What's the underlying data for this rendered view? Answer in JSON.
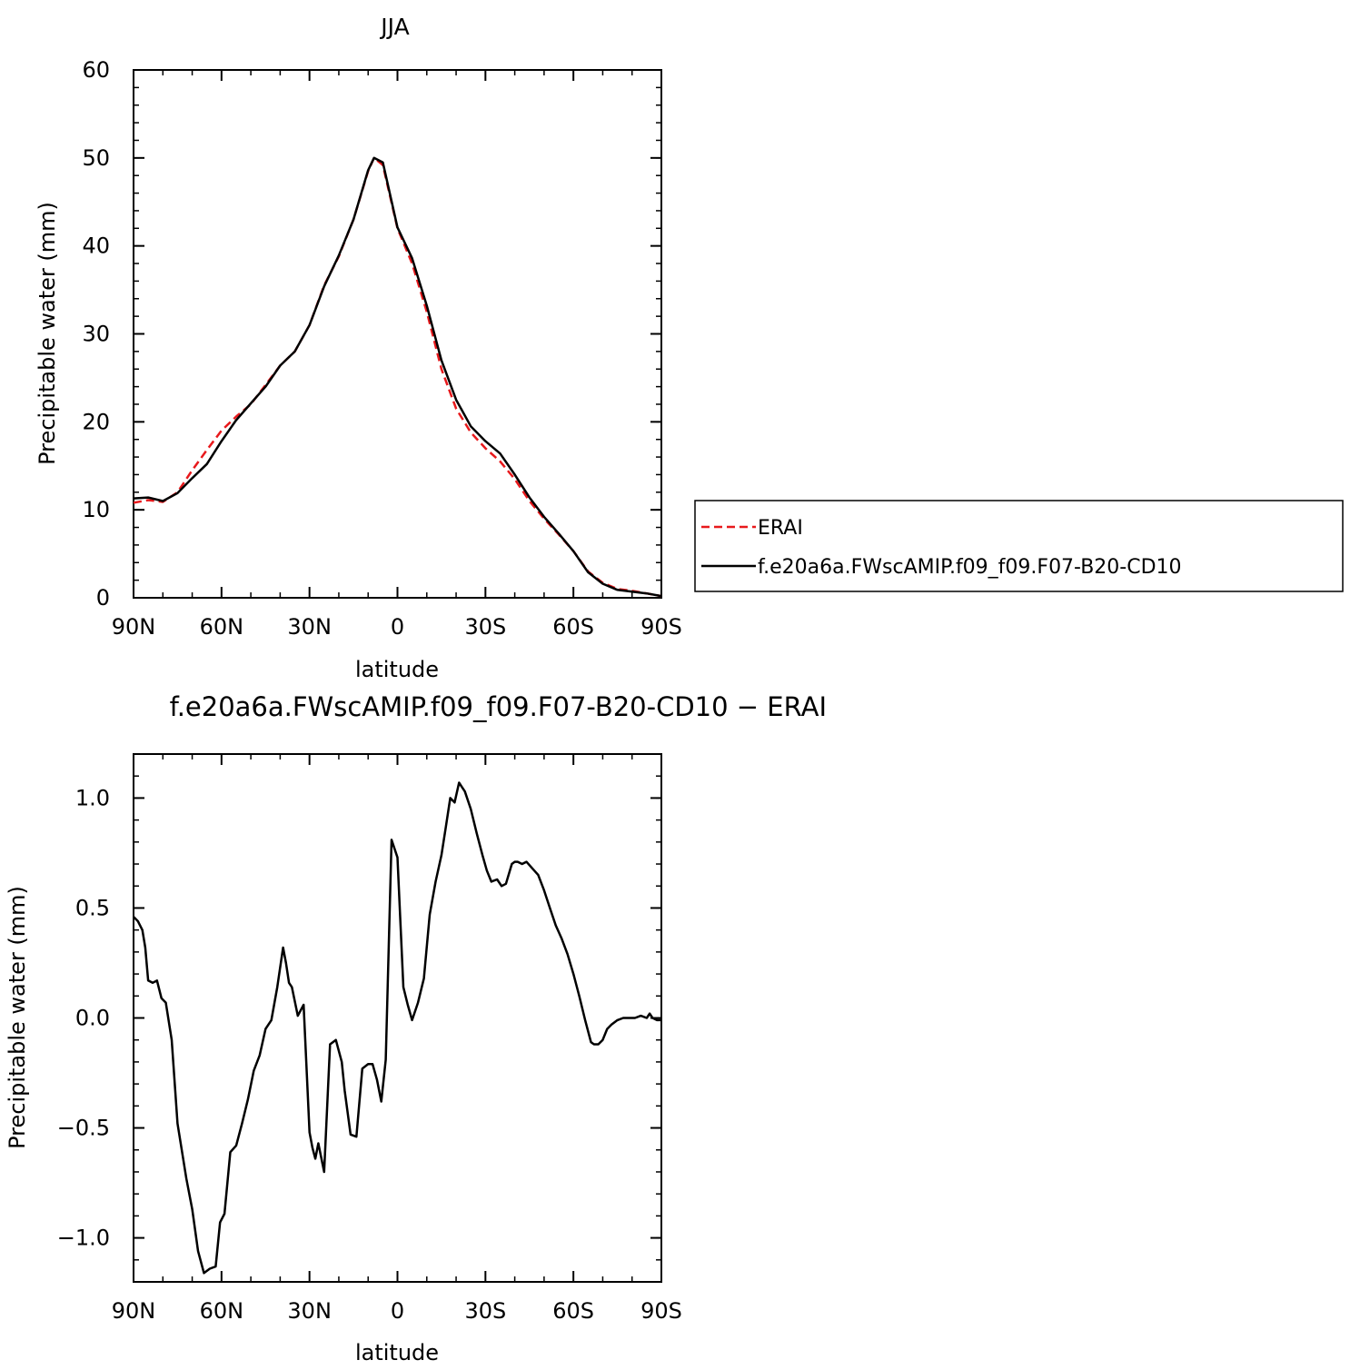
{
  "chart_data": [
    {
      "type": "line",
      "title": "JJA",
      "xlabel": "latitude",
      "ylabel": "Precipitable water (mm)",
      "xlim": [
        90,
        -90
      ],
      "ylim": [
        0,
        60
      ],
      "x_ticks": [
        {
          "v": 90,
          "label": "90N"
        },
        {
          "v": 60,
          "label": "60N"
        },
        {
          "v": 30,
          "label": "30N"
        },
        {
          "v": 0,
          "label": "0"
        },
        {
          "v": -30,
          "label": "30S"
        },
        {
          "v": -60,
          "label": "60S"
        },
        {
          "v": -90,
          "label": "90S"
        }
      ],
      "y_ticks": [
        {
          "v": 0,
          "label": "0"
        },
        {
          "v": 10,
          "label": "10"
        },
        {
          "v": 20,
          "label": "20"
        },
        {
          "v": 30,
          "label": "30"
        },
        {
          "v": 40,
          "label": "40"
        },
        {
          "v": 50,
          "label": "50"
        },
        {
          "v": 60,
          "label": "60"
        }
      ],
      "legend": {
        "placement": "right"
      },
      "series": [
        {
          "name": "ERAI",
          "color": "#e8191c",
          "dash": true,
          "x": [
            90,
            85,
            80,
            75,
            70,
            65,
            60,
            55,
            50,
            45,
            40,
            35,
            30,
            25,
            20,
            15,
            10,
            8,
            5,
            0,
            -5,
            -10,
            -15,
            -20,
            -25,
            -30,
            -35,
            -40,
            -45,
            -50,
            -55,
            -60,
            -65,
            -70,
            -75,
            -80,
            -85,
            -90
          ],
          "values": [
            10.8,
            11.1,
            10.9,
            12.0,
            14.5,
            16.8,
            19.0,
            20.6,
            22.0,
            24.2,
            26.4,
            28.0,
            31.0,
            35.5,
            38.8,
            43.0,
            48.5,
            50.0,
            49.2,
            42.0,
            38.0,
            32.5,
            26.0,
            21.5,
            18.8,
            17.0,
            15.5,
            13.5,
            11.0,
            9.0,
            7.2,
            5.3,
            3.0,
            1.7,
            1.0,
            0.8,
            0.5,
            0.2
          ]
        },
        {
          "name": "f.e20a6a.FWscAMIP.f09_f09.F07-B20-CD10",
          "color": "#000000",
          "dash": false,
          "x": [
            90,
            85,
            80,
            75,
            70,
            65,
            60,
            55,
            50,
            45,
            40,
            35,
            30,
            25,
            20,
            15,
            10,
            8,
            5,
            0,
            -5,
            -10,
            -15,
            -20,
            -25,
            -30,
            -35,
            -40,
            -45,
            -50,
            -55,
            -60,
            -65,
            -70,
            -75,
            -80,
            -85,
            -90
          ],
          "values": [
            11.3,
            11.4,
            11.0,
            11.9,
            13.6,
            15.2,
            17.8,
            20.2,
            22.1,
            24.0,
            26.4,
            28.0,
            31.0,
            35.4,
            38.9,
            43.0,
            48.6,
            50.0,
            49.5,
            42.1,
            38.6,
            33.2,
            27.0,
            22.5,
            19.5,
            17.8,
            16.4,
            14.0,
            11.4,
            9.2,
            7.3,
            5.3,
            2.9,
            1.6,
            0.9,
            0.7,
            0.5,
            0.2
          ]
        }
      ]
    },
    {
      "type": "line",
      "title": "f.e20a6a.FWscAMIP.f09_f09.F07-B20-CD10 − ERAI",
      "xlabel": "latitude",
      "ylabel": "Precipitable water (mm)",
      "xlim": [
        90,
        -90
      ],
      "ylim": [
        -1.2,
        1.2
      ],
      "x_ticks": [
        {
          "v": 90,
          "label": "90N"
        },
        {
          "v": 60,
          "label": "60N"
        },
        {
          "v": 30,
          "label": "30N"
        },
        {
          "v": 0,
          "label": "0"
        },
        {
          "v": -30,
          "label": "30S"
        },
        {
          "v": -60,
          "label": "60S"
        },
        {
          "v": -90,
          "label": "90S"
        }
      ],
      "y_ticks": [
        {
          "v": -1.0,
          "label": "−1.0"
        },
        {
          "v": -0.5,
          "label": "−0.5"
        },
        {
          "v": 0.0,
          "label": "0.0"
        },
        {
          "v": 0.5,
          "label": "0.5"
        },
        {
          "v": 1.0,
          "label": "1.0"
        }
      ],
      "series": [
        {
          "color": "#000000",
          "x": [
            90,
            88.5,
            87,
            86,
            85,
            83.5,
            82,
            80.5,
            79,
            77,
            75,
            72,
            70,
            68,
            66,
            64,
            62,
            60.5,
            59,
            57,
            55,
            53,
            51,
            49,
            47,
            45,
            43,
            41,
            39,
            38,
            37,
            36,
            34,
            32,
            30,
            29,
            28,
            27,
            25,
            23,
            21,
            19,
            18,
            16,
            14,
            12,
            10,
            8.5,
            7,
            5.5,
            4,
            2,
            0,
            -2,
            -3.5,
            -5,
            -7,
            -9,
            -11,
            -13,
            -15,
            -16.5,
            -18,
            -19.5,
            -21,
            -23,
            -25,
            -27,
            -29,
            -30.5,
            -32,
            -34,
            -35.5,
            -37,
            -39,
            -40,
            -41,
            -42.5,
            -44,
            -46,
            -48,
            -50,
            -52,
            -54,
            -56,
            -58,
            -60,
            -62,
            -64,
            -66,
            -67,
            -68.5,
            -70,
            -71.5,
            -73,
            -75,
            -77,
            -79,
            -81,
            -83,
            -85,
            -86,
            -87,
            -88.5,
            -90
          ],
          "values": [
            0.46,
            0.44,
            0.4,
            0.32,
            0.17,
            0.16,
            0.17,
            0.09,
            0.07,
            -0.1,
            -0.48,
            -0.73,
            -0.87,
            -1.06,
            -1.16,
            -1.14,
            -1.13,
            -0.93,
            -0.89,
            -0.61,
            -0.58,
            -0.48,
            -0.37,
            -0.24,
            -0.17,
            -0.05,
            -0.01,
            0.14,
            0.32,
            0.25,
            0.16,
            0.14,
            0.01,
            0.06,
            -0.52,
            -0.59,
            -0.64,
            -0.57,
            -0.7,
            -0.12,
            -0.1,
            -0.2,
            -0.33,
            -0.53,
            -0.54,
            -0.23,
            -0.21,
            -0.21,
            -0.28,
            -0.38,
            -0.19,
            0.81,
            0.73,
            0.14,
            0.06,
            -0.01,
            0.07,
            0.18,
            0.47,
            0.62,
            0.74,
            0.87,
            1.0,
            0.98,
            1.07,
            1.03,
            0.95,
            0.84,
            0.74,
            0.67,
            0.62,
            0.63,
            0.6,
            0.61,
            0.7,
            0.71,
            0.71,
            0.7,
            0.71,
            0.68,
            0.65,
            0.58,
            0.5,
            0.42,
            0.36,
            0.29,
            0.2,
            0.1,
            -0.01,
            -0.11,
            -0.12,
            -0.12,
            -0.1,
            -0.05,
            -0.03,
            -0.01,
            0.0,
            0.0,
            0.0,
            0.01,
            0.0,
            0.02,
            0.0,
            -0.01,
            -0.01
          ]
        }
      ]
    }
  ]
}
